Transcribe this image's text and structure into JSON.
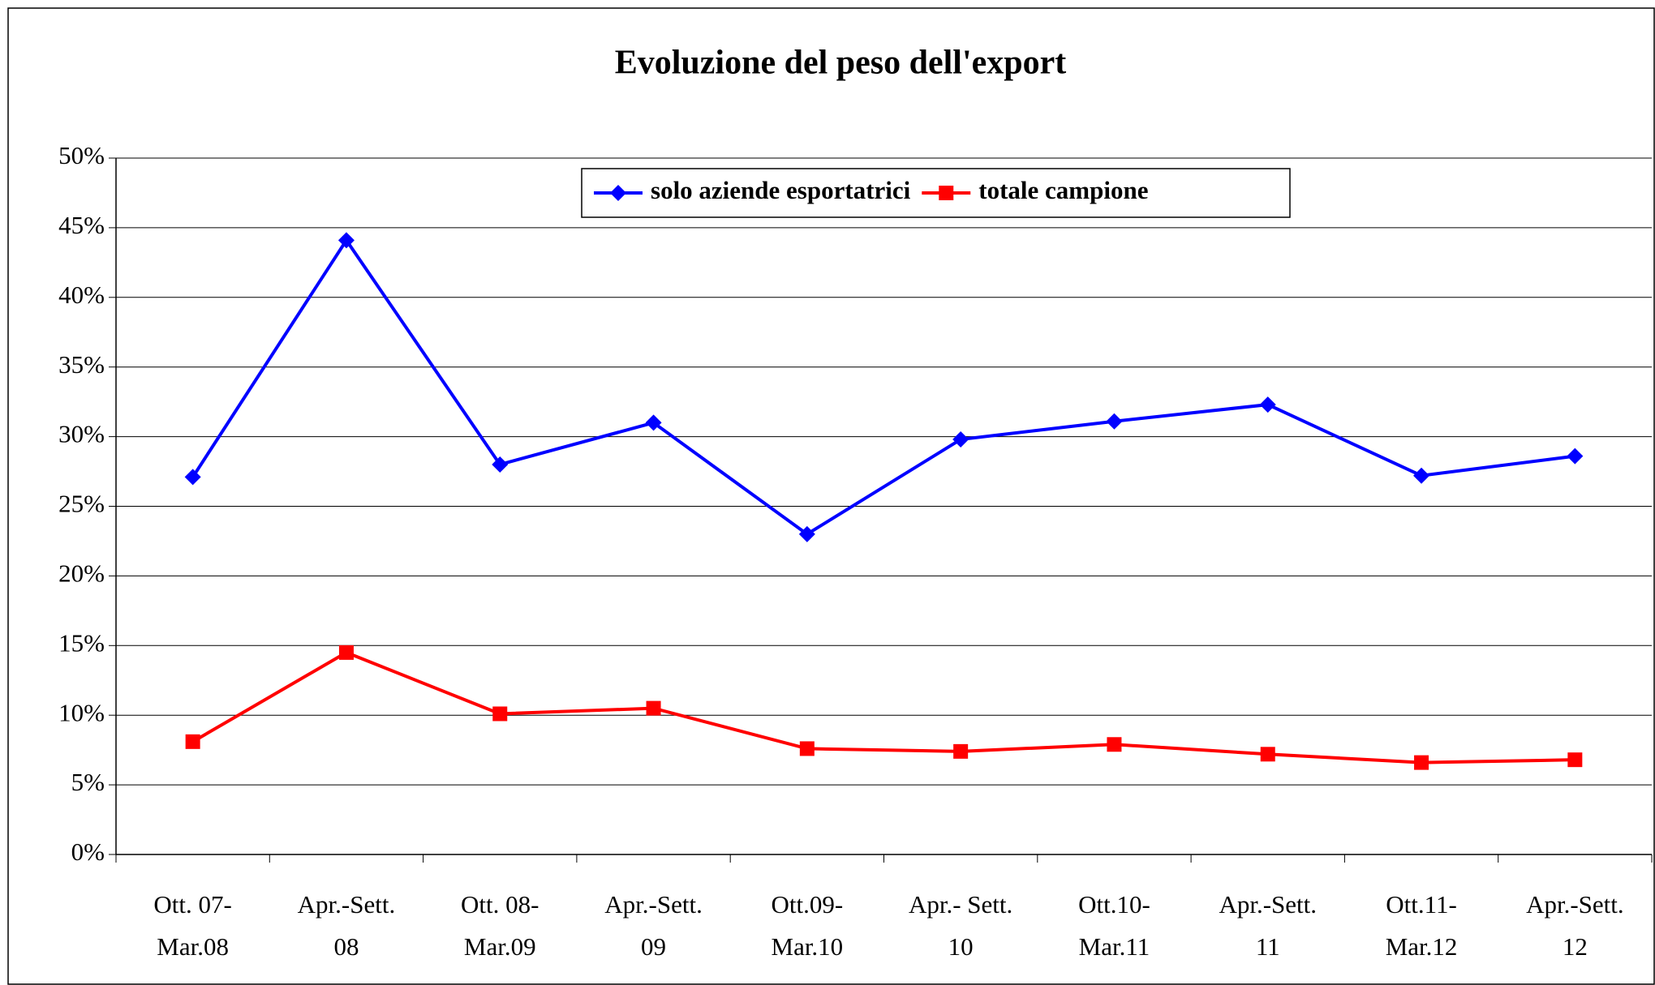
{
  "chart_data": {
    "type": "line",
    "title": "Evoluzione del peso dell'export",
    "categories": [
      "Ott. 07-\nMar.08",
      "Apr.-Sett.\n08",
      "Ott. 08-\nMar.09",
      "Apr.-Sett.\n09",
      "Ott.09-\nMar.10",
      "Apr.- Sett.\n10",
      "Ott.10-\nMar.11",
      "Apr.-Sett.\n11",
      "Ott.11-\nMar.12",
      "Apr.-Sett.\n12"
    ],
    "series": [
      {
        "name": "solo aziende esportatrici",
        "color": "#0000ff",
        "marker": "diamond",
        "values": [
          27.1,
          44.1,
          28.0,
          31.0,
          23.0,
          29.8,
          31.1,
          32.3,
          27.2,
          28.6
        ]
      },
      {
        "name": "totale campione",
        "color": "#ff0000",
        "marker": "square",
        "values": [
          8.1,
          14.5,
          10.1,
          10.5,
          7.6,
          7.4,
          7.9,
          7.2,
          6.6,
          6.8
        ]
      }
    ],
    "ylim": [
      0,
      50
    ],
    "yticks": [
      {
        "value": 0,
        "label": "0%"
      },
      {
        "value": 5,
        "label": "5%"
      },
      {
        "value": 10,
        "label": "10%"
      },
      {
        "value": 15,
        "label": "15%"
      },
      {
        "value": 20,
        "label": "20%"
      },
      {
        "value": 25,
        "label": "25%"
      },
      {
        "value": 30,
        "label": "30%"
      },
      {
        "value": 35,
        "label": "35%"
      },
      {
        "value": 40,
        "label": "40%"
      },
      {
        "value": 45,
        "label": "45%"
      },
      {
        "value": 50,
        "label": "50%"
      }
    ],
    "grid": true,
    "legend": "top"
  }
}
